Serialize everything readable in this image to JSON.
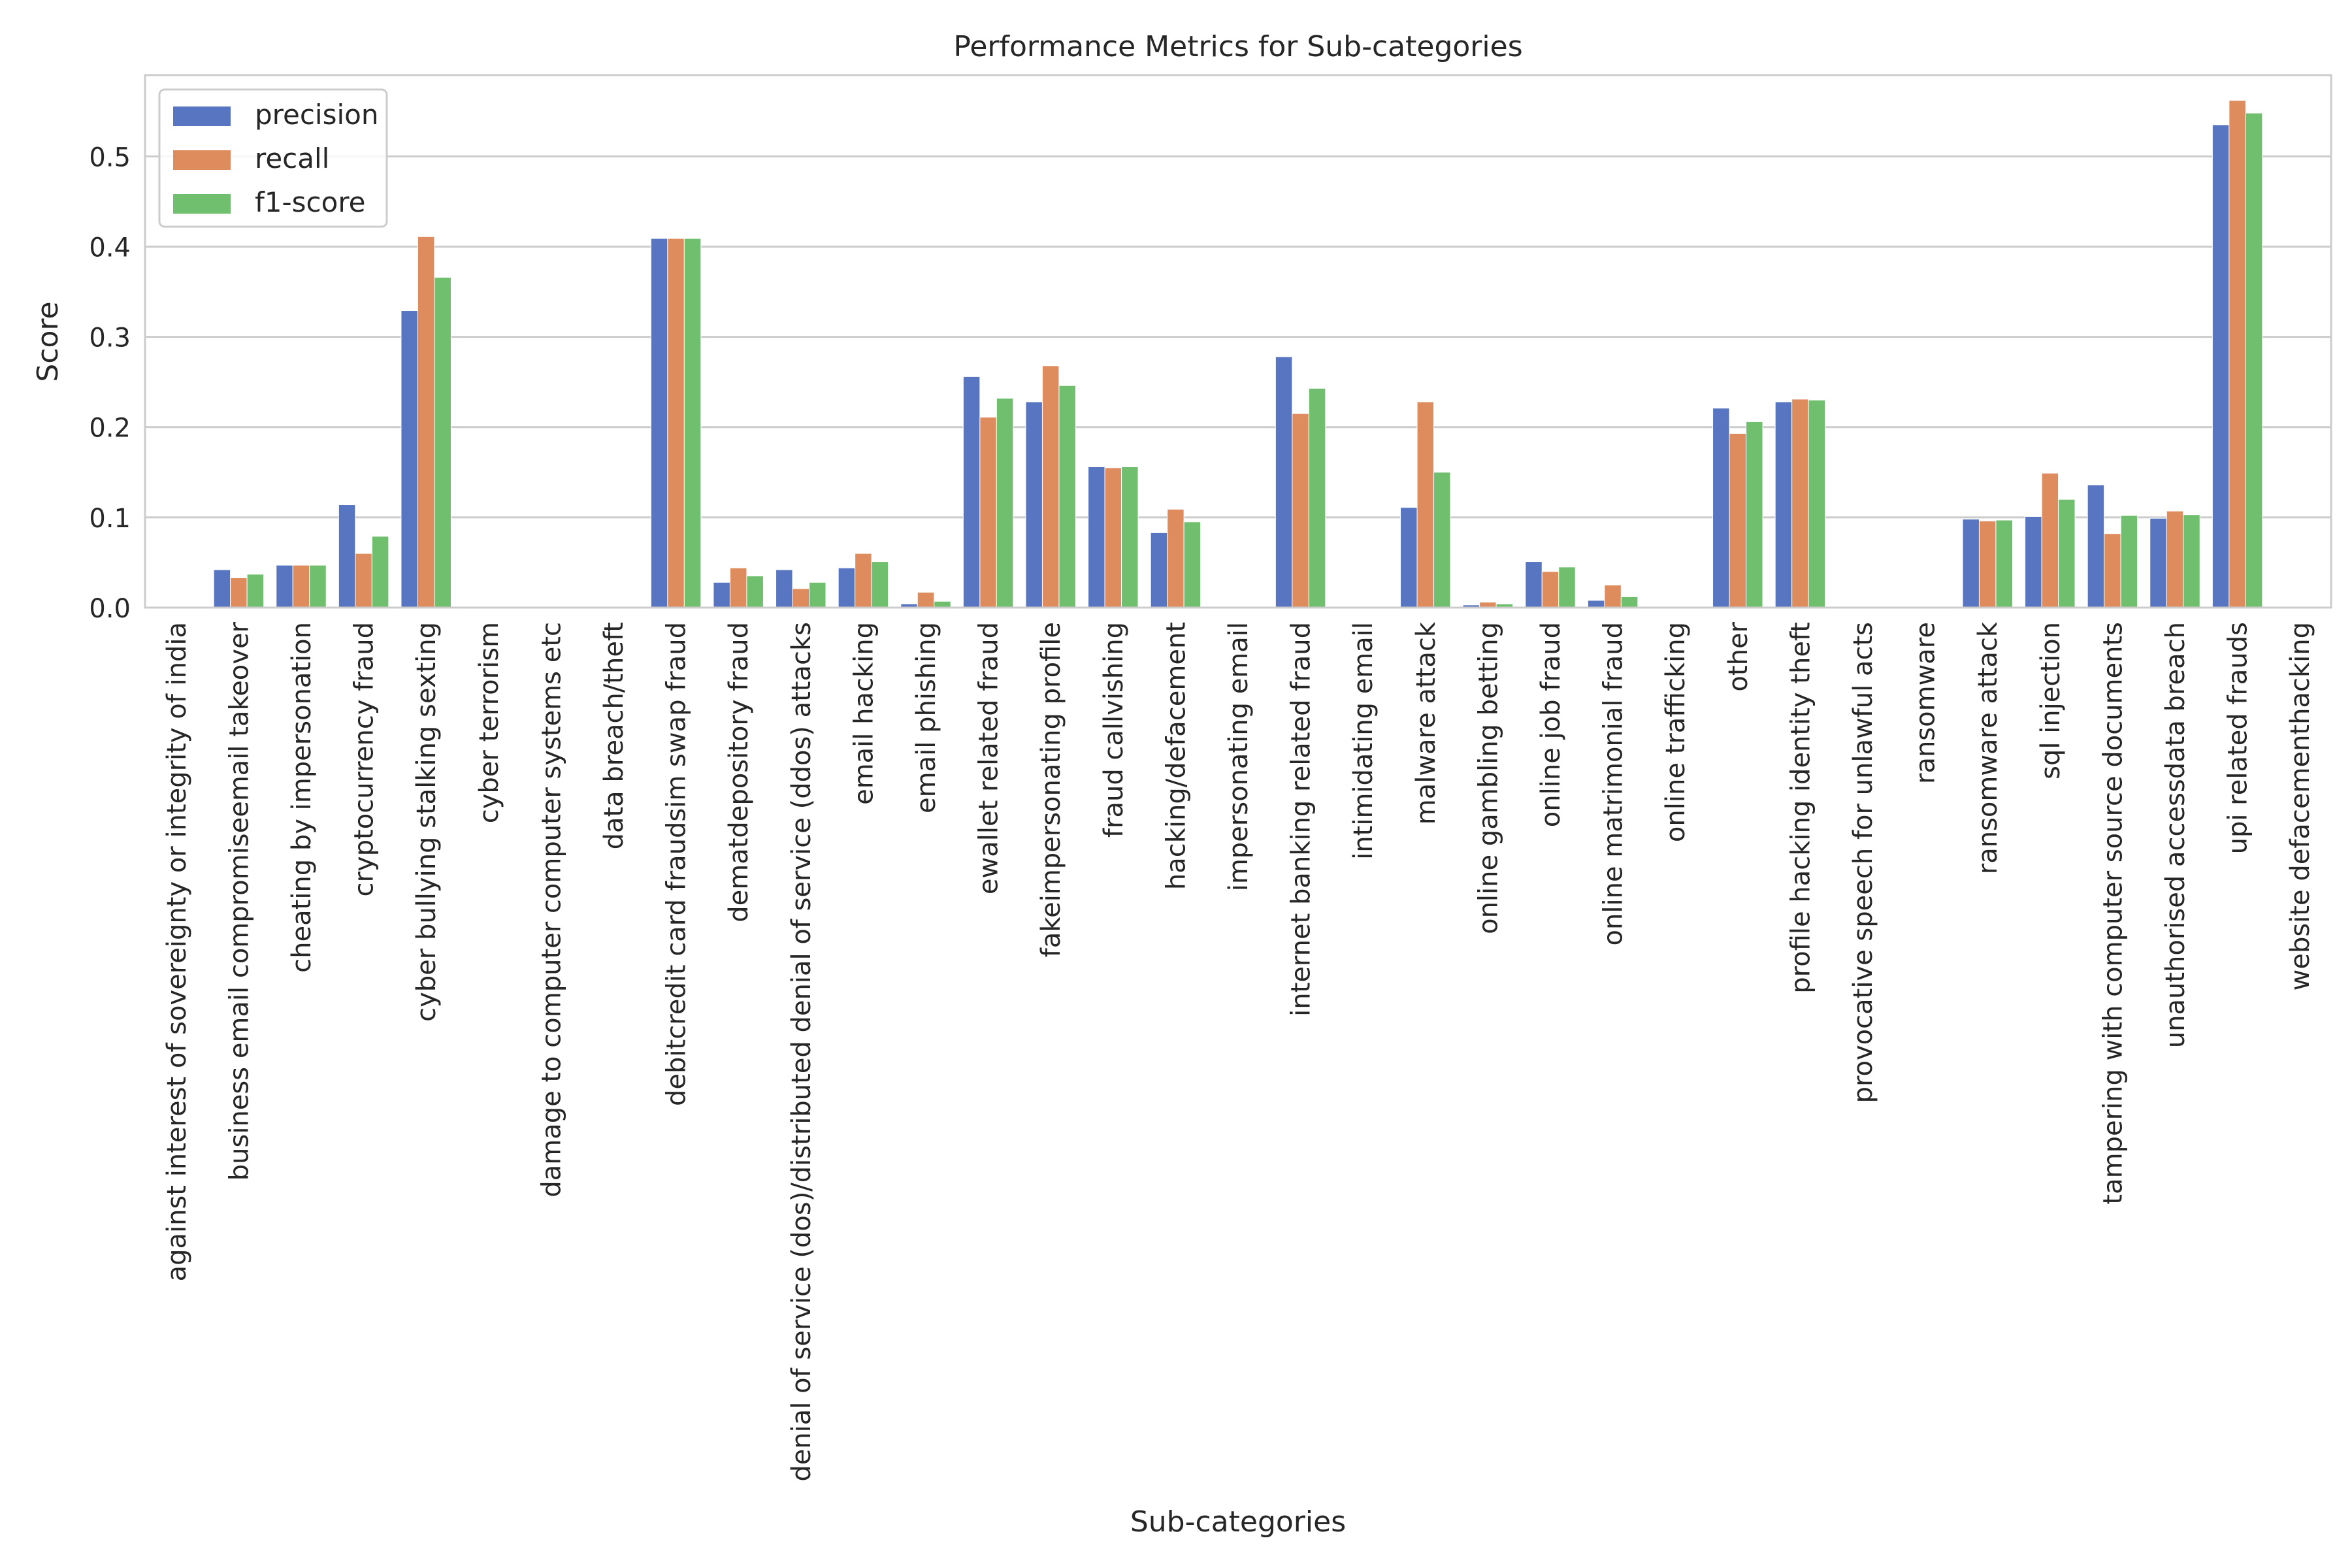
{
  "chart_data": {
    "type": "bar",
    "title": "Performance Metrics for Sub-categories",
    "xlabel": "Sub-categories",
    "ylabel": "Score",
    "ylim": [
      0,
      0.59
    ],
    "yticks": [
      "0.0",
      "0.1",
      "0.2",
      "0.3",
      "0.4",
      "0.5"
    ],
    "grid": true,
    "legend_position": "top-left",
    "categories": [
      "against interest of sovereignty or integrity of india",
      "business email compromiseemail takeover",
      "cheating by impersonation",
      "cryptocurrency fraud",
      "cyber bullying  stalking  sexting",
      "cyber terrorism",
      "damage to computer computer systems etc",
      "data breach/theft",
      "debitcredit card fraudsim swap fraud",
      "dematdepository fraud",
      "denial of service (dos)/distributed denial of service (ddos) attacks",
      "email hacking",
      "email phishing",
      "ewallet related fraud",
      "fakeimpersonating profile",
      "fraud callvishing",
      "hacking/defacement",
      "impersonating email",
      "internet banking related fraud",
      "intimidating email",
      "malware attack",
      "online gambling  betting",
      "online job fraud",
      "online matrimonial fraud",
      "online trafficking",
      "other",
      "profile hacking identity theft",
      "provocative speech for unlawful acts",
      "ransomware",
      "ransomware attack",
      "sql injection",
      "tampering with computer source documents",
      "unauthorised accessdata breach",
      "upi related frauds",
      "website defacementhacking"
    ],
    "series": [
      {
        "name": "precision",
        "color": "#5875c1",
        "values": [
          0,
          0.042,
          0.047,
          0.114,
          0.329,
          0,
          0,
          0,
          0.409,
          0.028,
          0.042,
          0.044,
          0.004,
          0.256,
          0.228,
          0.156,
          0.083,
          0,
          0.278,
          0,
          0.111,
          0.003,
          0.051,
          0.008,
          0,
          0.221,
          0.228,
          0,
          0,
          0.098,
          0.101,
          0.136,
          0.099,
          0.535,
          0
        ]
      },
      {
        "name": "recall",
        "color": "#de8c5e",
        "values": [
          0,
          0.033,
          0.047,
          0.06,
          0.411,
          0,
          0,
          0,
          0.409,
          0.044,
          0.021,
          0.06,
          0.017,
          0.211,
          0.268,
          0.155,
          0.109,
          0,
          0.215,
          0,
          0.228,
          0.006,
          0.04,
          0.025,
          0,
          0.193,
          0.231,
          0,
          0,
          0.096,
          0.149,
          0.082,
          0.107,
          0.562,
          0
        ]
      },
      {
        "name": "f1-score",
        "color": "#70bf6e",
        "values": [
          0,
          0.037,
          0.047,
          0.079,
          0.366,
          0,
          0,
          0,
          0.409,
          0.035,
          0.028,
          0.051,
          0.007,
          0.232,
          0.246,
          0.156,
          0.095,
          0,
          0.243,
          0,
          0.15,
          0.004,
          0.045,
          0.012,
          0,
          0.206,
          0.23,
          0,
          0,
          0.097,
          0.12,
          0.102,
          0.103,
          0.548,
          0
        ]
      }
    ]
  }
}
